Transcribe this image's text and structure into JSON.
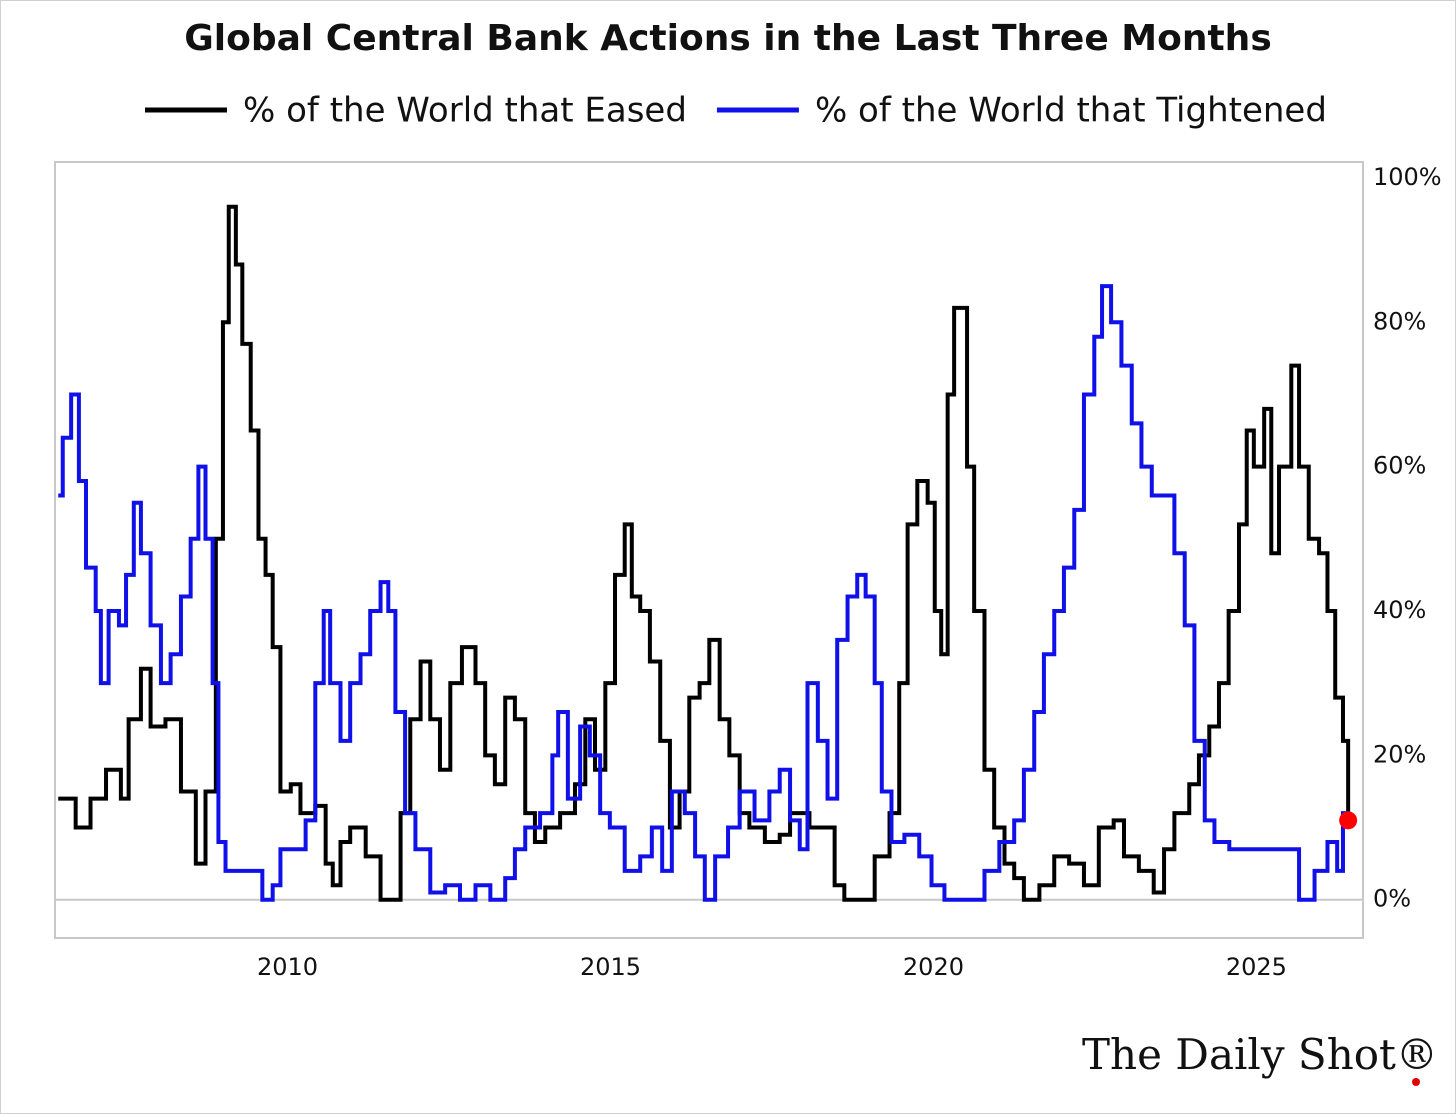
{
  "chart_data": {
    "type": "line",
    "step": true,
    "title": "Global Central Bank Actions in the Last Three Months",
    "xlim": [
      2006.4,
      2026.65
    ],
    "xticks": [
      2010,
      2015,
      2020,
      2025
    ],
    "ylim": [
      -5.3,
      102.2
    ],
    "yticks": [
      {
        "value": 0,
        "label": "0%"
      },
      {
        "value": 20,
        "label": "20%"
      },
      {
        "value": 40,
        "label": "40%"
      },
      {
        "value": 60,
        "label": "60%"
      },
      {
        "value": 80,
        "label": "80%"
      },
      {
        "value": 100,
        "label": "100%"
      }
    ],
    "y_axis_side": "right",
    "zero_line": true,
    "last_point_color": "#ff0000",
    "series": [
      {
        "name": "% of the World that Eased",
        "color": "#000000",
        "x": [
          2006.45,
          2006.72,
          2006.95,
          2007.19,
          2007.42,
          2007.54,
          2007.73,
          2007.88,
          2008.11,
          2008.35,
          2008.58,
          2008.73,
          2008.89,
          2009.0,
          2009.09,
          2009.2,
          2009.3,
          2009.43,
          2009.55,
          2009.66,
          2009.77,
          2009.89,
          2010.05,
          2010.2,
          2010.43,
          2010.59,
          2010.7,
          2010.82,
          2010.97,
          2011.21,
          2011.44,
          2011.59,
          2011.75,
          2011.9,
          2012.06,
          2012.21,
          2012.36,
          2012.52,
          2012.7,
          2012.91,
          2013.06,
          2013.21,
          2013.37,
          2013.52,
          2013.68,
          2013.83,
          2013.99,
          2014.22,
          2014.45,
          2014.61,
          2014.76,
          2014.92,
          2015.07,
          2015.22,
          2015.33,
          2015.46,
          2015.61,
          2015.77,
          2015.92,
          2016.07,
          2016.22,
          2016.38,
          2016.53,
          2016.69,
          2016.84,
          2017.0,
          2017.15,
          2017.39,
          2017.62,
          2017.78,
          2018.08,
          2018.31,
          2018.47,
          2018.62,
          2018.86,
          2019.09,
          2019.32,
          2019.47,
          2019.6,
          2019.75,
          2019.91,
          2020.02,
          2020.12,
          2020.22,
          2020.32,
          2020.43,
          2020.52,
          2020.63,
          2020.79,
          2020.94,
          2021.1,
          2021.25,
          2021.4,
          2021.64,
          2021.87,
          2022.1,
          2022.33,
          2022.56,
          2022.79,
          2022.95,
          2023.18,
          2023.41,
          2023.57,
          2023.73,
          2023.96,
          2024.11,
          2024.27,
          2024.42,
          2024.57,
          2024.73,
          2024.85,
          2024.96,
          2025.12,
          2025.23,
          2025.35,
          2025.54,
          2025.66,
          2025.81,
          2025.97,
          2026.1,
          2026.22,
          2026.34,
          2026.42
        ],
        "values": [
          14,
          10,
          14,
          18,
          14,
          25,
          32,
          24,
          25,
          15,
          5,
          15,
          50,
          80,
          96,
          88,
          77,
          65,
          50,
          45,
          35,
          15,
          16,
          12,
          13,
          5,
          2,
          8,
          10,
          6,
          0,
          0,
          12,
          25,
          33,
          25,
          18,
          30,
          35,
          30,
          20,
          16,
          28,
          25,
          12,
          8,
          10,
          12,
          16,
          25,
          18,
          30,
          45,
          52,
          42,
          40,
          33,
          22,
          10,
          15,
          28,
          30,
          36,
          25,
          20,
          12,
          10,
          8,
          9,
          12,
          10,
          10,
          2,
          0,
          0,
          6,
          12,
          30,
          52,
          58,
          55,
          40,
          34,
          70,
          82,
          82,
          60,
          40,
          18,
          10,
          5,
          3,
          0,
          2,
          6,
          5,
          2,
          10,
          11,
          6,
          4,
          1,
          7,
          12,
          16,
          20,
          24,
          30,
          40,
          52,
          65,
          60,
          68,
          48,
          60,
          74,
          60,
          50,
          48,
          40,
          28,
          22,
          12
        ]
      },
      {
        "name": "% of the World that Tightened",
        "color": "#1010e8",
        "x": [
          2006.45,
          2006.52,
          2006.65,
          2006.77,
          2006.88,
          2007.03,
          2007.11,
          2007.23,
          2007.39,
          2007.5,
          2007.62,
          2007.73,
          2007.88,
          2008.04,
          2008.19,
          2008.35,
          2008.5,
          2008.62,
          2008.73,
          2008.84,
          2008.93,
          2009.04,
          2009.27,
          2009.51,
          2009.61,
          2009.77,
          2009.89,
          2010.12,
          2010.28,
          2010.43,
          2010.56,
          2010.66,
          2010.82,
          2010.97,
          2011.13,
          2011.28,
          2011.44,
          2011.56,
          2011.67,
          2011.82,
          2011.98,
          2012.21,
          2012.44,
          2012.67,
          2012.91,
          2013.14,
          2013.37,
          2013.52,
          2013.68,
          2013.91,
          2014.1,
          2014.19,
          2014.34,
          2014.53,
          2014.68,
          2014.84,
          2014.99,
          2015.22,
          2015.46,
          2015.64,
          2015.8,
          2015.95,
          2016.15,
          2016.31,
          2016.46,
          2016.62,
          2016.82,
          2017.0,
          2017.23,
          2017.46,
          2017.62,
          2017.78,
          2017.93,
          2018.05,
          2018.21,
          2018.36,
          2018.51,
          2018.67,
          2018.82,
          2018.95,
          2019.09,
          2019.2,
          2019.35,
          2019.55,
          2019.78,
          2019.97,
          2020.17,
          2020.4,
          2020.63,
          2020.79,
          2021.02,
          2021.25,
          2021.4,
          2021.56,
          2021.71,
          2021.87,
          2022.02,
          2022.18,
          2022.33,
          2022.49,
          2022.61,
          2022.75,
          2022.91,
          2023.07,
          2023.22,
          2023.38,
          2023.58,
          2023.73,
          2023.89,
          2024.04,
          2024.2,
          2024.35,
          2024.58,
          2024.89,
          2025.2,
          2025.43,
          2025.66,
          2025.9,
          2026.1,
          2026.25,
          2026.34,
          2026.42
        ],
        "values": [
          56,
          64,
          70,
          58,
          46,
          40,
          30,
          40,
          38,
          45,
          55,
          48,
          38,
          30,
          34,
          42,
          50,
          60,
          50,
          30,
          8,
          4,
          4,
          4,
          0,
          2,
          7,
          7,
          11,
          30,
          40,
          30,
          22,
          30,
          34,
          40,
          44,
          40,
          26,
          12,
          7,
          1,
          2,
          0,
          2,
          0,
          3,
          7,
          10,
          12,
          20,
          26,
          14,
          24,
          20,
          12,
          10,
          4,
          6,
          10,
          4,
          15,
          12,
          6,
          0,
          6,
          10,
          15,
          11,
          15,
          18,
          11,
          7,
          30,
          22,
          14,
          36,
          42,
          45,
          42,
          30,
          15,
          8,
          9,
          6,
          2,
          0,
          0,
          0,
          4,
          8,
          11,
          18,
          26,
          34,
          40,
          46,
          54,
          70,
          78,
          85,
          80,
          74,
          66,
          60,
          56,
          56,
          48,
          38,
          22,
          11,
          8,
          7,
          7,
          7,
          7,
          0,
          4,
          8,
          4,
          12,
          11
        ]
      }
    ],
    "logo": "The Daily Shot®"
  }
}
